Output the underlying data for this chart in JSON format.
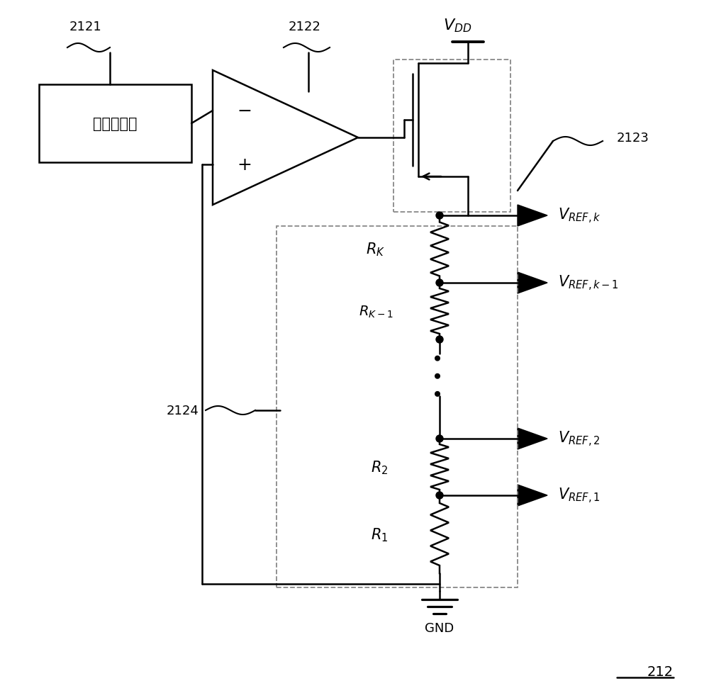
{
  "bg_color": "#ffffff",
  "line_color": "#000000",
  "box_label": "基准电压源",
  "label_2121": "2121",
  "label_2122": "2122",
  "label_2123": "2123",
  "label_2124": "2124",
  "label_212": "212",
  "vdd_label": "$V_{DD}$",
  "vref_k": "$V_{REF,k}$",
  "vref_k1": "$V_{REF,k-1}$",
  "vref_2": "$V_{REF,2}$",
  "vref_1": "$V_{REF,1}$",
  "rk_label": "$R_K$",
  "rk1_label": "$R_{K-1}$",
  "r2_label": "$R_2$",
  "r1_label": "$R_1$",
  "gnd_label": "GND",
  "minus_sign": "−",
  "plus_sign": "+"
}
